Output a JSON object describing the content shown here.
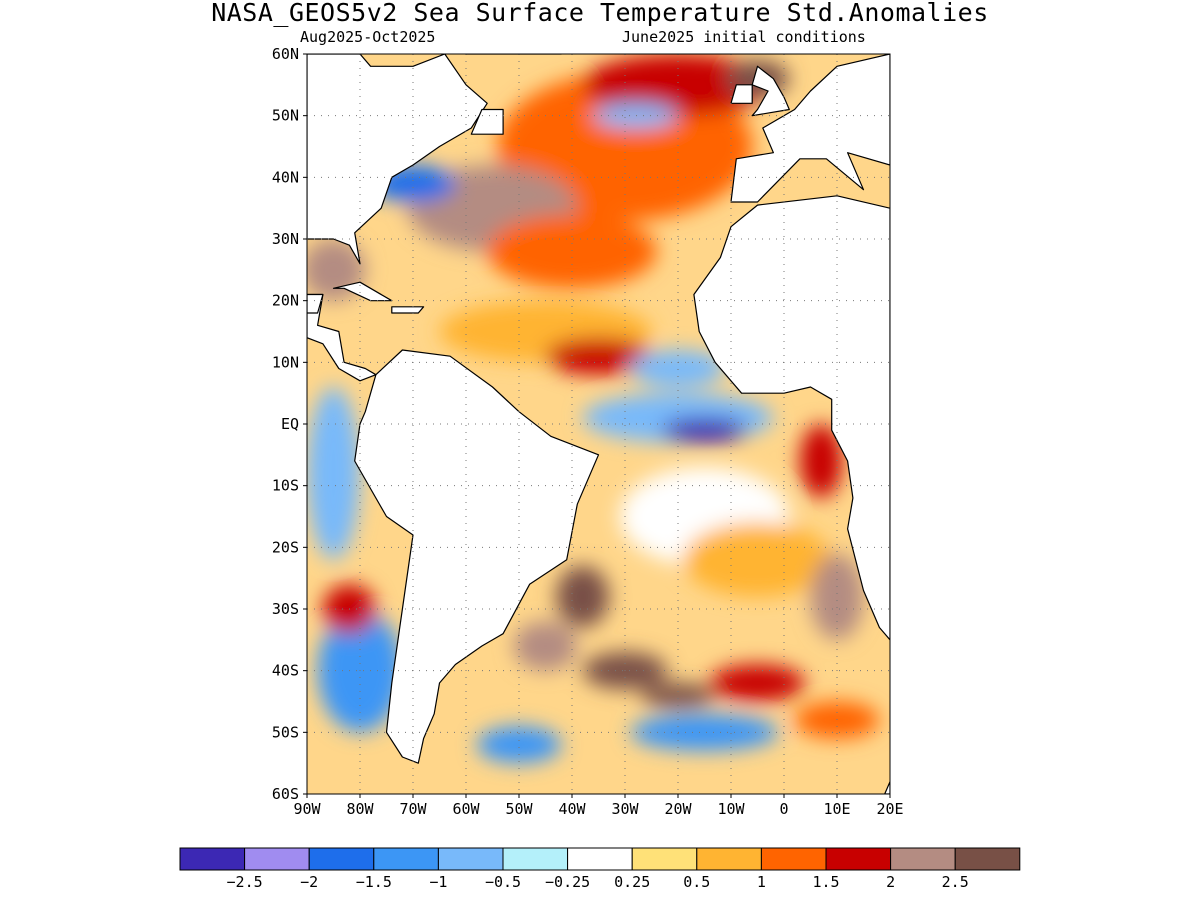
{
  "title": "NASA_GEOS5v2 Sea Surface Temperature Std.Anomalies",
  "subtitle_left": "Aug2025-Oct2025",
  "subtitle_right": "June2025 initial conditions",
  "map": {
    "region": "Atlantic Ocean",
    "projection": "latitude-longitude",
    "lon_range": [
      -90,
      20
    ],
    "lat_range": [
      -60,
      60
    ],
    "grid": "dotted",
    "lat_ticks": [
      {
        "lat": 60,
        "label": "60N"
      },
      {
        "lat": 50,
        "label": "50N"
      },
      {
        "lat": 40,
        "label": "40N"
      },
      {
        "lat": 30,
        "label": "30N"
      },
      {
        "lat": 20,
        "label": "20N"
      },
      {
        "lat": 10,
        "label": "10N"
      },
      {
        "lat": 0,
        "label": "EQ"
      },
      {
        "lat": -10,
        "label": "10S"
      },
      {
        "lat": -20,
        "label": "20S"
      },
      {
        "lat": -30,
        "label": "30S"
      },
      {
        "lat": -40,
        "label": "40S"
      },
      {
        "lat": -50,
        "label": "50S"
      },
      {
        "lat": -60,
        "label": "60S"
      }
    ],
    "lon_ticks": [
      {
        "lon": -90,
        "label": "90W"
      },
      {
        "lon": -80,
        "label": "80W"
      },
      {
        "lon": -70,
        "label": "70W"
      },
      {
        "lon": -60,
        "label": "60W"
      },
      {
        "lon": -50,
        "label": "50W"
      },
      {
        "lon": -40,
        "label": "40W"
      },
      {
        "lon": -30,
        "label": "30W"
      },
      {
        "lon": -20,
        "label": "20W"
      },
      {
        "lon": -10,
        "label": "10W"
      },
      {
        "lon": 0,
        "label": "0"
      },
      {
        "lon": 10,
        "label": "10E"
      },
      {
        "lon": 20,
        "label": "20E"
      }
    ],
    "land_color": "#ffffff",
    "anomaly_features": [
      {
        "lon": -30,
        "lat": 45,
        "rx": 24,
        "ry": 12,
        "v": 1.2
      },
      {
        "lon": -55,
        "lat": 35,
        "rx": 16,
        "ry": 7,
        "v": 2.4
      },
      {
        "lon": -40,
        "lat": 28,
        "rx": 16,
        "ry": 6,
        "v": 1.0
      },
      {
        "lon": -20,
        "lat": 55,
        "rx": 18,
        "ry": 5,
        "v": 1.6
      },
      {
        "lon": -5,
        "lat": 56,
        "rx": 6,
        "ry": 3,
        "v": 2.6
      },
      {
        "lon": -28,
        "lat": 50,
        "rx": 8,
        "ry": 2,
        "v": -0.8
      },
      {
        "lon": -70,
        "lat": 39,
        "rx": 8,
        "ry": 3,
        "v": -1.6
      },
      {
        "lon": -85,
        "lat": 25,
        "rx": 6,
        "ry": 5,
        "v": 2.0
      },
      {
        "lon": -45,
        "lat": 15,
        "rx": 20,
        "ry": 5,
        "v": 0.7
      },
      {
        "lon": -35,
        "lat": 11,
        "rx": 10,
        "ry": 3,
        "v": 1.7
      },
      {
        "lon": -20,
        "lat": 9,
        "rx": 9,
        "ry": 3,
        "v": -0.9
      },
      {
        "lon": -20,
        "lat": 1,
        "rx": 18,
        "ry": 4,
        "v": -1.0
      },
      {
        "lon": -15,
        "lat": -1,
        "rx": 8,
        "ry": 2,
        "v": -2.6
      },
      {
        "lon": 7,
        "lat": -6,
        "rx": 4,
        "ry": 6,
        "v": 1.8
      },
      {
        "lon": -15,
        "lat": -15,
        "rx": 16,
        "ry": 8,
        "v": 0.1
      },
      {
        "lon": -5,
        "lat": -22,
        "rx": 14,
        "ry": 6,
        "v": 0.9
      },
      {
        "lon": 10,
        "lat": -28,
        "rx": 5,
        "ry": 7,
        "v": 2.2
      },
      {
        "lon": -38,
        "lat": -28,
        "rx": 5,
        "ry": 5,
        "v": 2.6
      },
      {
        "lon": -45,
        "lat": -36,
        "rx": 6,
        "ry": 4,
        "v": 2.4
      },
      {
        "lon": -30,
        "lat": -40,
        "rx": 8,
        "ry": 3,
        "v": 2.5
      },
      {
        "lon": -20,
        "lat": -44,
        "rx": 7,
        "ry": 2,
        "v": 2.6
      },
      {
        "lon": -5,
        "lat": -42,
        "rx": 9,
        "ry": 3,
        "v": 1.8
      },
      {
        "lon": -15,
        "lat": -50,
        "rx": 14,
        "ry": 3,
        "v": -1.2
      },
      {
        "lon": -50,
        "lat": -52,
        "rx": 8,
        "ry": 3,
        "v": -1.4
      },
      {
        "lon": -80,
        "lat": -40,
        "rx": 8,
        "ry": 10,
        "v": -1.4
      },
      {
        "lon": -85,
        "lat": -8,
        "rx": 5,
        "ry": 14,
        "v": -0.9
      },
      {
        "lon": -82,
        "lat": -30,
        "rx": 5,
        "ry": 4,
        "v": 1.6
      },
      {
        "lon": 10,
        "lat": -48,
        "rx": 8,
        "ry": 3,
        "v": 1.1
      }
    ]
  },
  "colorbar": {
    "colors": [
      "#3c28b4",
      "#a08cf0",
      "#1e6eeb",
      "#3c96f5",
      "#78b9fa",
      "#b4f0fa",
      "#ffffff",
      "#ffe178",
      "#ffb432",
      "#ff6400",
      "#c80000",
      "#b48c82",
      "#785046"
    ],
    "tick_labels": [
      "−2.5",
      "−2",
      "−1.5",
      "−1",
      "−0.5",
      "−0.25",
      "0.25",
      "0.5",
      "1",
      "1.5",
      "2",
      "2.5"
    ]
  }
}
